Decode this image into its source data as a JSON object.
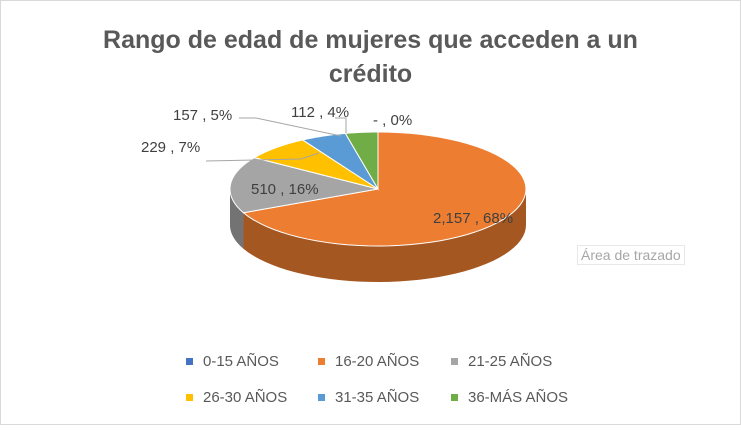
{
  "chart_data": {
    "type": "pie",
    "title_lines": [
      "Rango de edad de mujeres que acceden a un",
      "crédito"
    ],
    "categories": [
      "0-15 AÑOS",
      "16-20 AÑOS",
      "21-25 AÑOS",
      "26-30 AÑOS",
      "31-35 AÑOS",
      "36-MÁS AÑOS"
    ],
    "values": [
      0,
      2157,
      510,
      229,
      157,
      112
    ],
    "data_labels": [
      "-  , 0%",
      "2,157 , 68%",
      "510 , 16%",
      "229 , 7%",
      "157 , 5%",
      "112 , 4%"
    ],
    "colors": [
      "#4472c4",
      "#ed7d31",
      "#a5a5a5",
      "#ffc000",
      "#5b9bd5",
      "#70ad47"
    ],
    "legend_position": "bottom",
    "tooltip": "Área de trazado"
  }
}
